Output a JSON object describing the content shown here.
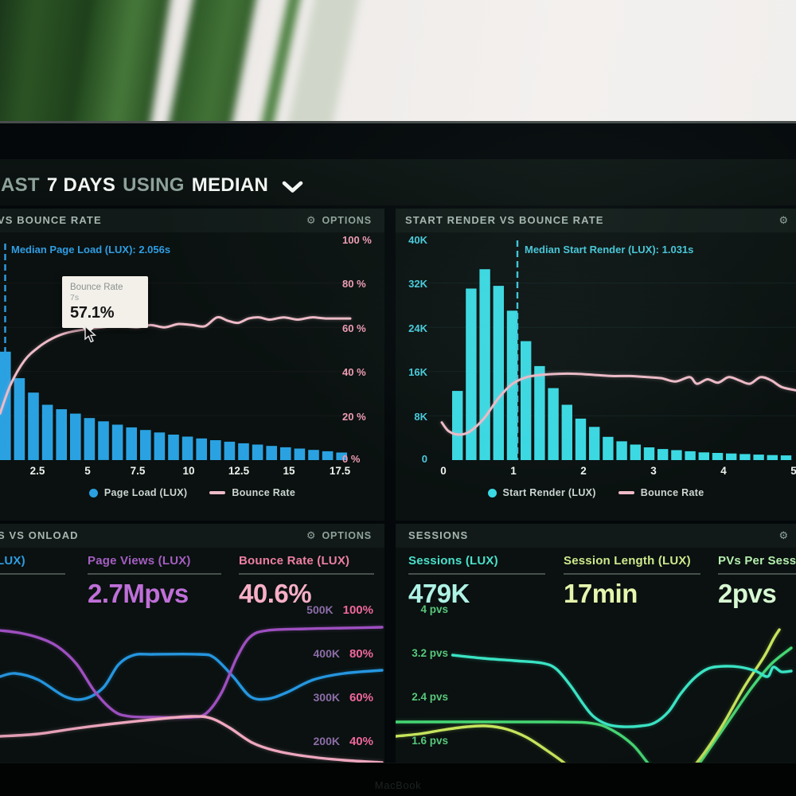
{
  "toolbar": {
    "segments": [
      {
        "text": "LAST",
        "emphasis": false
      },
      {
        "text": "7 DAYS",
        "emphasis": true
      },
      {
        "text": "USING",
        "emphasis": false
      },
      {
        "text": "MEDIAN",
        "emphasis": true
      }
    ]
  },
  "icons": {
    "gear": "⚙"
  },
  "bezel": {
    "brand_text": "MacBook"
  },
  "colors": {
    "bar_blue": "#2aa2e2",
    "bar_cyan": "#3bd9e3",
    "line_pink": "#eebac7",
    "accent_blue": "#2f9de3",
    "accent_cyan": "#46c6da",
    "axis_pink": "#f09cb4",
    "axis_cyan": "#49cbdd",
    "axis_green": "#58c87c",
    "purple": "#a55ec2",
    "pink": "#ee7fa4",
    "teal": "#4ae0cb",
    "lime": "#cfe98c",
    "light_green": "#b5efae"
  },
  "panels": {
    "page_load": {
      "title": "VS BOUNCE RATE",
      "options_label": "OPTIONS",
      "annotation": "Median Page Load (LUX): 2.056s",
      "tooltip": {
        "title": "Bounce Rate",
        "subtitle": "7s",
        "value": "57.1%"
      },
      "y_right": [
        "100 %",
        "80 %",
        "60 %",
        "40 %",
        "20 %",
        "0 %"
      ],
      "x_ticks": [
        "2.5",
        "5",
        "7.5",
        "10",
        "12.5",
        "15",
        "17.5"
      ],
      "legend": [
        {
          "name": "Page Load (LUX)"
        },
        {
          "name": "Bounce Rate"
        }
      ]
    },
    "start_render": {
      "title": "START RENDER VS BOUNCE RATE",
      "annotation": "Median Start Render (LUX): 1.031s",
      "y_left": [
        "40K",
        "32K",
        "24K",
        "16K",
        "8K",
        "0"
      ],
      "x_ticks": [
        "0",
        "1",
        "2",
        "3",
        "4",
        "5"
      ],
      "legend": [
        {
          "name": "Start Render (LUX)"
        },
        {
          "name": "Bounce Rate"
        }
      ]
    },
    "onload": {
      "title": "S VS ONLOAD",
      "options_label": "OPTIONS",
      "stats": [
        {
          "label": "LUX)",
          "value": "",
          "color_key": "blue"
        },
        {
          "label": "Page Views (LUX)",
          "value": "2.7Mpvs",
          "color_key": "purple"
        },
        {
          "label": "Bounce Rate (LUX)",
          "value": "40.6%",
          "color_key": "pink"
        }
      ],
      "y_right_rows": [
        [
          "500K",
          "100%"
        ],
        [
          "400K",
          "80%"
        ],
        [
          "300K",
          "60%"
        ],
        [
          "200K",
          "40%"
        ]
      ]
    },
    "sessions": {
      "title": "SESSIONS",
      "stats": [
        {
          "label": "Sessions (LUX)",
          "value": "479K",
          "color_key": "teal"
        },
        {
          "label": "Session Length (LUX)",
          "value": "17min",
          "color_key": "lime"
        },
        {
          "label": "PVs Per Session (LUX)",
          "value": "2pvs",
          "color_key": "light_green"
        }
      ],
      "y_left_labels": [
        "4 pvs",
        "3.2 pvs",
        "2.4 pvs",
        "1.6 pvs"
      ]
    }
  },
  "chart_data": [
    {
      "id": "page-load-vs-bounce-rate",
      "type": "bar+line",
      "title": "VS BOUNCE RATE",
      "x_tick_labels": [
        "2.5",
        "5",
        "7.5",
        "10",
        "12.5",
        "15",
        "17.5"
      ],
      "y_right_axis": {
        "labels": [
          "100 %",
          "80 %",
          "60 %",
          "40 %",
          "20 %",
          "0 %"
        ],
        "range_pct": [
          0,
          100
        ]
      },
      "annotation": {
        "text": "Median Page Load (LUX): 2.056s",
        "x_frac": 0.013
      },
      "bar_series": {
        "name": "Page Load (LUX)",
        "values_norm": [
          0.49,
          0.37,
          0.305,
          0.25,
          0.23,
          0.21,
          0.19,
          0.175,
          0.16,
          0.148,
          0.136,
          0.125,
          0.115,
          0.106,
          0.098,
          0.09,
          0.083,
          0.076,
          0.07,
          0.064,
          0.058,
          0.052,
          0.046,
          0.04,
          0.034
        ]
      },
      "line_series": {
        "name": "Bounce Rate",
        "points_x_frac_y_pct": [
          [
            0,
            21
          ],
          [
            0.03,
            34
          ],
          [
            0.07,
            45
          ],
          [
            0.11,
            51
          ],
          [
            0.15,
            55
          ],
          [
            0.19,
            57.5
          ],
          [
            0.24,
            59
          ],
          [
            0.29,
            60
          ],
          [
            0.34,
            60.5
          ],
          [
            0.39,
            60
          ],
          [
            0.43,
            61
          ],
          [
            0.47,
            60
          ],
          [
            0.51,
            61.5
          ],
          [
            0.55,
            61
          ],
          [
            0.585,
            60.5
          ],
          [
            0.62,
            64.5
          ],
          [
            0.65,
            63
          ],
          [
            0.68,
            62
          ],
          [
            0.71,
            64
          ],
          [
            0.74,
            64.5
          ],
          [
            0.77,
            63.5
          ],
          [
            0.81,
            64.5
          ],
          [
            0.85,
            63.5
          ],
          [
            0.89,
            64.5
          ],
          [
            0.93,
            64
          ],
          [
            1,
            64
          ]
        ]
      },
      "tooltip": {
        "title": "Bounce Rate",
        "subtitle": "7s",
        "value": "57.1%"
      }
    },
    {
      "id": "start-render-vs-bounce-rate",
      "type": "bar+line",
      "title": "START RENDER VS BOUNCE RATE",
      "x_tick_labels": [
        "0",
        "1",
        "2",
        "3",
        "4",
        "5"
      ],
      "y_left_axis": {
        "labels": [
          "40K",
          "32K",
          "24K",
          "16K",
          "8K",
          "0"
        ],
        "range": [
          0,
          40000
        ]
      },
      "annotation": {
        "text": "Median Start Render (LUX): 1.031s",
        "x_value_s": 1.031
      },
      "bar_series": {
        "name": "Start Render (LUX)",
        "values_thousands": [
          12.5,
          31,
          34.5,
          31.5,
          27,
          21.5,
          17,
          13,
          10,
          7.5,
          6,
          4.2,
          3.4,
          2.8,
          2.3,
          2.0,
          1.8,
          1.6,
          1.4,
          1.3,
          1.2,
          1.1,
          1.0,
          0.9,
          0.85
        ]
      },
      "line_series": {
        "name": "Bounce Rate",
        "points_x_frac_y_frac_from_bottom": [
          [
            0,
            0.17
          ],
          [
            0.02,
            0.13
          ],
          [
            0.05,
            0.115
          ],
          [
            0.08,
            0.13
          ],
          [
            0.12,
            0.19
          ],
          [
            0.16,
            0.28
          ],
          [
            0.2,
            0.345
          ],
          [
            0.24,
            0.375
          ],
          [
            0.28,
            0.385
          ],
          [
            0.33,
            0.39
          ],
          [
            0.38,
            0.39
          ],
          [
            0.43,
            0.385
          ],
          [
            0.48,
            0.38
          ],
          [
            0.53,
            0.38
          ],
          [
            0.58,
            0.375
          ],
          [
            0.62,
            0.37
          ],
          [
            0.66,
            0.355
          ],
          [
            0.7,
            0.375
          ],
          [
            0.72,
            0.345
          ],
          [
            0.75,
            0.365
          ],
          [
            0.78,
            0.35
          ],
          [
            0.81,
            0.375
          ],
          [
            0.84,
            0.36
          ],
          [
            0.87,
            0.345
          ],
          [
            0.9,
            0.375
          ],
          [
            0.93,
            0.36
          ],
          [
            0.96,
            0.33
          ],
          [
            1,
            0.315
          ]
        ]
      }
    },
    {
      "id": "vs-onload",
      "type": "line",
      "title": "S VS ONLOAD",
      "y_right_axis_rows": [
        [
          "500K",
          "100%"
        ],
        [
          "400K",
          "80%"
        ],
        [
          "300K",
          "60%"
        ],
        [
          "200K",
          "40%"
        ]
      ],
      "series": [
        {
          "name": "(LUX)",
          "color_key": "blue",
          "points_x_frac_y_frac_from_top": [
            [
              0,
              0.45
            ],
            [
              0.04,
              0.43
            ],
            [
              0.1,
              0.47
            ],
            [
              0.17,
              0.575
            ],
            [
              0.22,
              0.59
            ],
            [
              0.27,
              0.52
            ],
            [
              0.31,
              0.375
            ],
            [
              0.35,
              0.315
            ],
            [
              0.4,
              0.31
            ],
            [
              0.52,
              0.31
            ],
            [
              0.56,
              0.33
            ],
            [
              0.61,
              0.45
            ],
            [
              0.655,
              0.575
            ],
            [
              0.7,
              0.59
            ],
            [
              0.75,
              0.55
            ],
            [
              0.82,
              0.47
            ],
            [
              0.9,
              0.43
            ],
            [
              1,
              0.41
            ]
          ]
        },
        {
          "name": "Page Views (LUX)",
          "color_key": "purple",
          "points_x_frac_y_frac_from_top": [
            [
              0,
              0.16
            ],
            [
              0.05,
              0.175
            ],
            [
              0.1,
              0.205
            ],
            [
              0.15,
              0.26
            ],
            [
              0.2,
              0.37
            ],
            [
              0.25,
              0.55
            ],
            [
              0.3,
              0.67
            ],
            [
              0.34,
              0.7
            ],
            [
              0.4,
              0.705
            ],
            [
              0.5,
              0.705
            ],
            [
              0.54,
              0.68
            ],
            [
              0.58,
              0.55
            ],
            [
              0.62,
              0.33
            ],
            [
              0.655,
              0.2
            ],
            [
              0.7,
              0.16
            ],
            [
              0.8,
              0.15
            ],
            [
              0.9,
              0.145
            ],
            [
              1,
              0.14
            ]
          ]
        },
        {
          "name": "Bounce Rate (LUX)",
          "color_key": "pink",
          "points_x_frac_y_frac_from_top": [
            [
              0,
              0.825
            ],
            [
              0.1,
              0.81
            ],
            [
              0.2,
              0.775
            ],
            [
              0.3,
              0.745
            ],
            [
              0.42,
              0.715
            ],
            [
              0.5,
              0.7
            ],
            [
              0.55,
              0.71
            ],
            [
              0.6,
              0.77
            ],
            [
              0.66,
              0.865
            ],
            [
              0.72,
              0.915
            ],
            [
              0.8,
              0.95
            ],
            [
              0.9,
              0.975
            ],
            [
              1,
              0.99
            ]
          ]
        }
      ]
    },
    {
      "id": "sessions",
      "type": "line",
      "title": "SESSIONS",
      "y_left_axis": {
        "labels": [
          "4 pvs",
          "3.2 pvs",
          "2.4 pvs",
          "1.6 pvs"
        ]
      },
      "series": [
        {
          "name": "Sessions (LUX)",
          "color_key": "teal",
          "points_x_frac_y_frac_from_top": [
            [
              0.144,
              0.315
            ],
            [
              0.22,
              0.335
            ],
            [
              0.3,
              0.35
            ],
            [
              0.37,
              0.365
            ],
            [
              0.405,
              0.4
            ],
            [
              0.44,
              0.5
            ],
            [
              0.475,
              0.625
            ],
            [
              0.5,
              0.7
            ],
            [
              0.535,
              0.75
            ],
            [
              0.575,
              0.765
            ],
            [
              0.62,
              0.76
            ],
            [
              0.655,
              0.74
            ],
            [
              0.69,
              0.67
            ],
            [
              0.72,
              0.56
            ],
            [
              0.755,
              0.46
            ],
            [
              0.79,
              0.4
            ],
            [
              0.83,
              0.385
            ],
            [
              0.87,
              0.39
            ],
            [
              0.91,
              0.415
            ],
            [
              0.94,
              0.45
            ],
            [
              0.955,
              0.39
            ],
            [
              0.975,
              0.42
            ],
            [
              1,
              0.415
            ]
          ]
        },
        {
          "name": "Session Length (LUX)",
          "color_key": "green",
          "points_x_frac_y_frac_from_top": [
            [
              0,
              0.735
            ],
            [
              0.4,
              0.735
            ],
            [
              0.5,
              0.745
            ],
            [
              0.55,
              0.79
            ],
            [
              0.6,
              0.88
            ],
            [
              0.64,
              1.0
            ],
            [
              0.68,
              1.1
            ],
            [
              0.72,
              1.12
            ],
            [
              0.76,
              1.02
            ],
            [
              0.8,
              0.88
            ],
            [
              0.85,
              0.7
            ],
            [
              0.9,
              0.52
            ],
            [
              0.95,
              0.37
            ],
            [
              1,
              0.27
            ]
          ]
        },
        {
          "name": "PVs Per Session (LUX)",
          "color_key": "yellow",
          "points_x_frac_y_frac_from_top": [
            [
              0,
              0.825
            ],
            [
              0.06,
              0.81
            ],
            [
              0.12,
              0.785
            ],
            [
              0.18,
              0.765
            ],
            [
              0.23,
              0.76
            ],
            [
              0.28,
              0.78
            ],
            [
              0.33,
              0.83
            ],
            [
              0.38,
              0.91
            ],
            [
              0.43,
              1.0
            ],
            [
              0.47,
              1.1
            ],
            [
              0.52,
              1.18
            ],
            [
              0.6,
              1.22
            ],
            [
              0.68,
              1.18
            ],
            [
              0.73,
              1.08
            ],
            [
              0.78,
              0.93
            ],
            [
              0.83,
              0.74
            ],
            [
              0.88,
              0.52
            ],
            [
              0.93,
              0.33
            ],
            [
              0.956,
              0.21
            ],
            [
              0.97,
              0.155
            ]
          ]
        }
      ]
    }
  ]
}
